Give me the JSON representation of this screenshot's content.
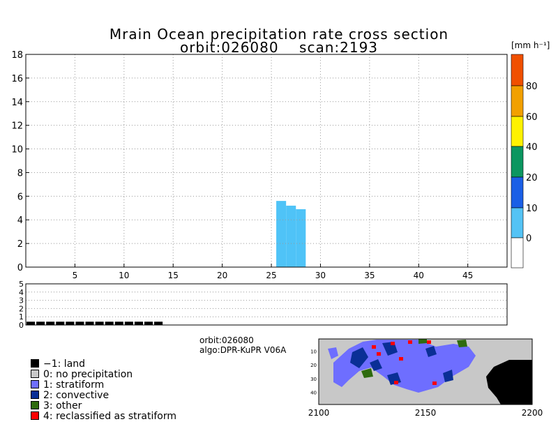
{
  "chart_data": {
    "type": "bar",
    "title": "Mrain Ocean precipitation rate cross section",
    "subtitle": "orbit:026080    scan:2193",
    "unit": "[mm h⁻¹]",
    "main": {
      "xlim": [
        0,
        49
      ],
      "ylim": [
        0,
        18
      ],
      "xticks": [
        "5",
        "10",
        "15",
        "20",
        "25",
        "30",
        "35",
        "40",
        "45"
      ],
      "yticks": [
        "0",
        "2",
        "4",
        "6",
        "8",
        "10",
        "12",
        "14",
        "16",
        "18"
      ],
      "grid": true,
      "bars": [
        {
          "x": 26,
          "top": 5.6
        },
        {
          "x": 27,
          "top": 5.2
        },
        {
          "x": 28,
          "top": 4.9
        }
      ],
      "bar_color": "#4FC3F7"
    },
    "colorbar": {
      "labels": [
        "0",
        "10",
        "20",
        "40",
        "60",
        "80"
      ],
      "colors": [
        "#ffffff",
        "#54C3F5",
        "#1A5FE6",
        "#0B9660",
        "#FFF200",
        "#F2A000",
        "#F05000"
      ]
    },
    "type_strip": {
      "ylim": [
        0,
        5
      ],
      "yticks": [
        "0",
        "1",
        "2",
        "3",
        "4",
        "5"
      ],
      "grid": true,
      "values_by_ray": [
        -1,
        -1,
        -1,
        -1,
        -1,
        -1,
        -1,
        -1,
        -1,
        -1,
        -1,
        -1,
        -1,
        -1,
        0,
        0,
        0,
        0,
        0,
        0,
        0,
        0,
        0,
        0,
        0,
        0,
        0,
        0,
        0,
        0,
        0,
        0,
        0,
        0,
        0,
        0,
        0,
        0,
        0,
        0,
        0,
        0,
        0,
        0,
        0,
        0,
        0,
        0,
        0
      ],
      "bar_value_land": 0.4
    },
    "info": {
      "orbit": "orbit:026080",
      "algo": "algo:DPR-KuPR V06A"
    },
    "legend": [
      {
        "label": "−1: land",
        "color": "#000000"
      },
      {
        "label": "0: no precipitation",
        "color": "#C8C8C8"
      },
      {
        "label": "1: stratiform",
        "color": "#6E6EFF"
      },
      {
        "label": "2: convective",
        "color": "#0A2F96"
      },
      {
        "label": "3: other",
        "color": "#2E6B0E"
      },
      {
        "label": "4: reclassified as stratiform",
        "color": "#FF0000"
      }
    ],
    "map": {
      "xticks": [
        "2100",
        "2150",
        "2200"
      ],
      "xlim": [
        2100,
        2200
      ],
      "yticks": [
        "10",
        "20",
        "30",
        "40"
      ],
      "ylim": [
        1,
        49
      ]
    }
  }
}
